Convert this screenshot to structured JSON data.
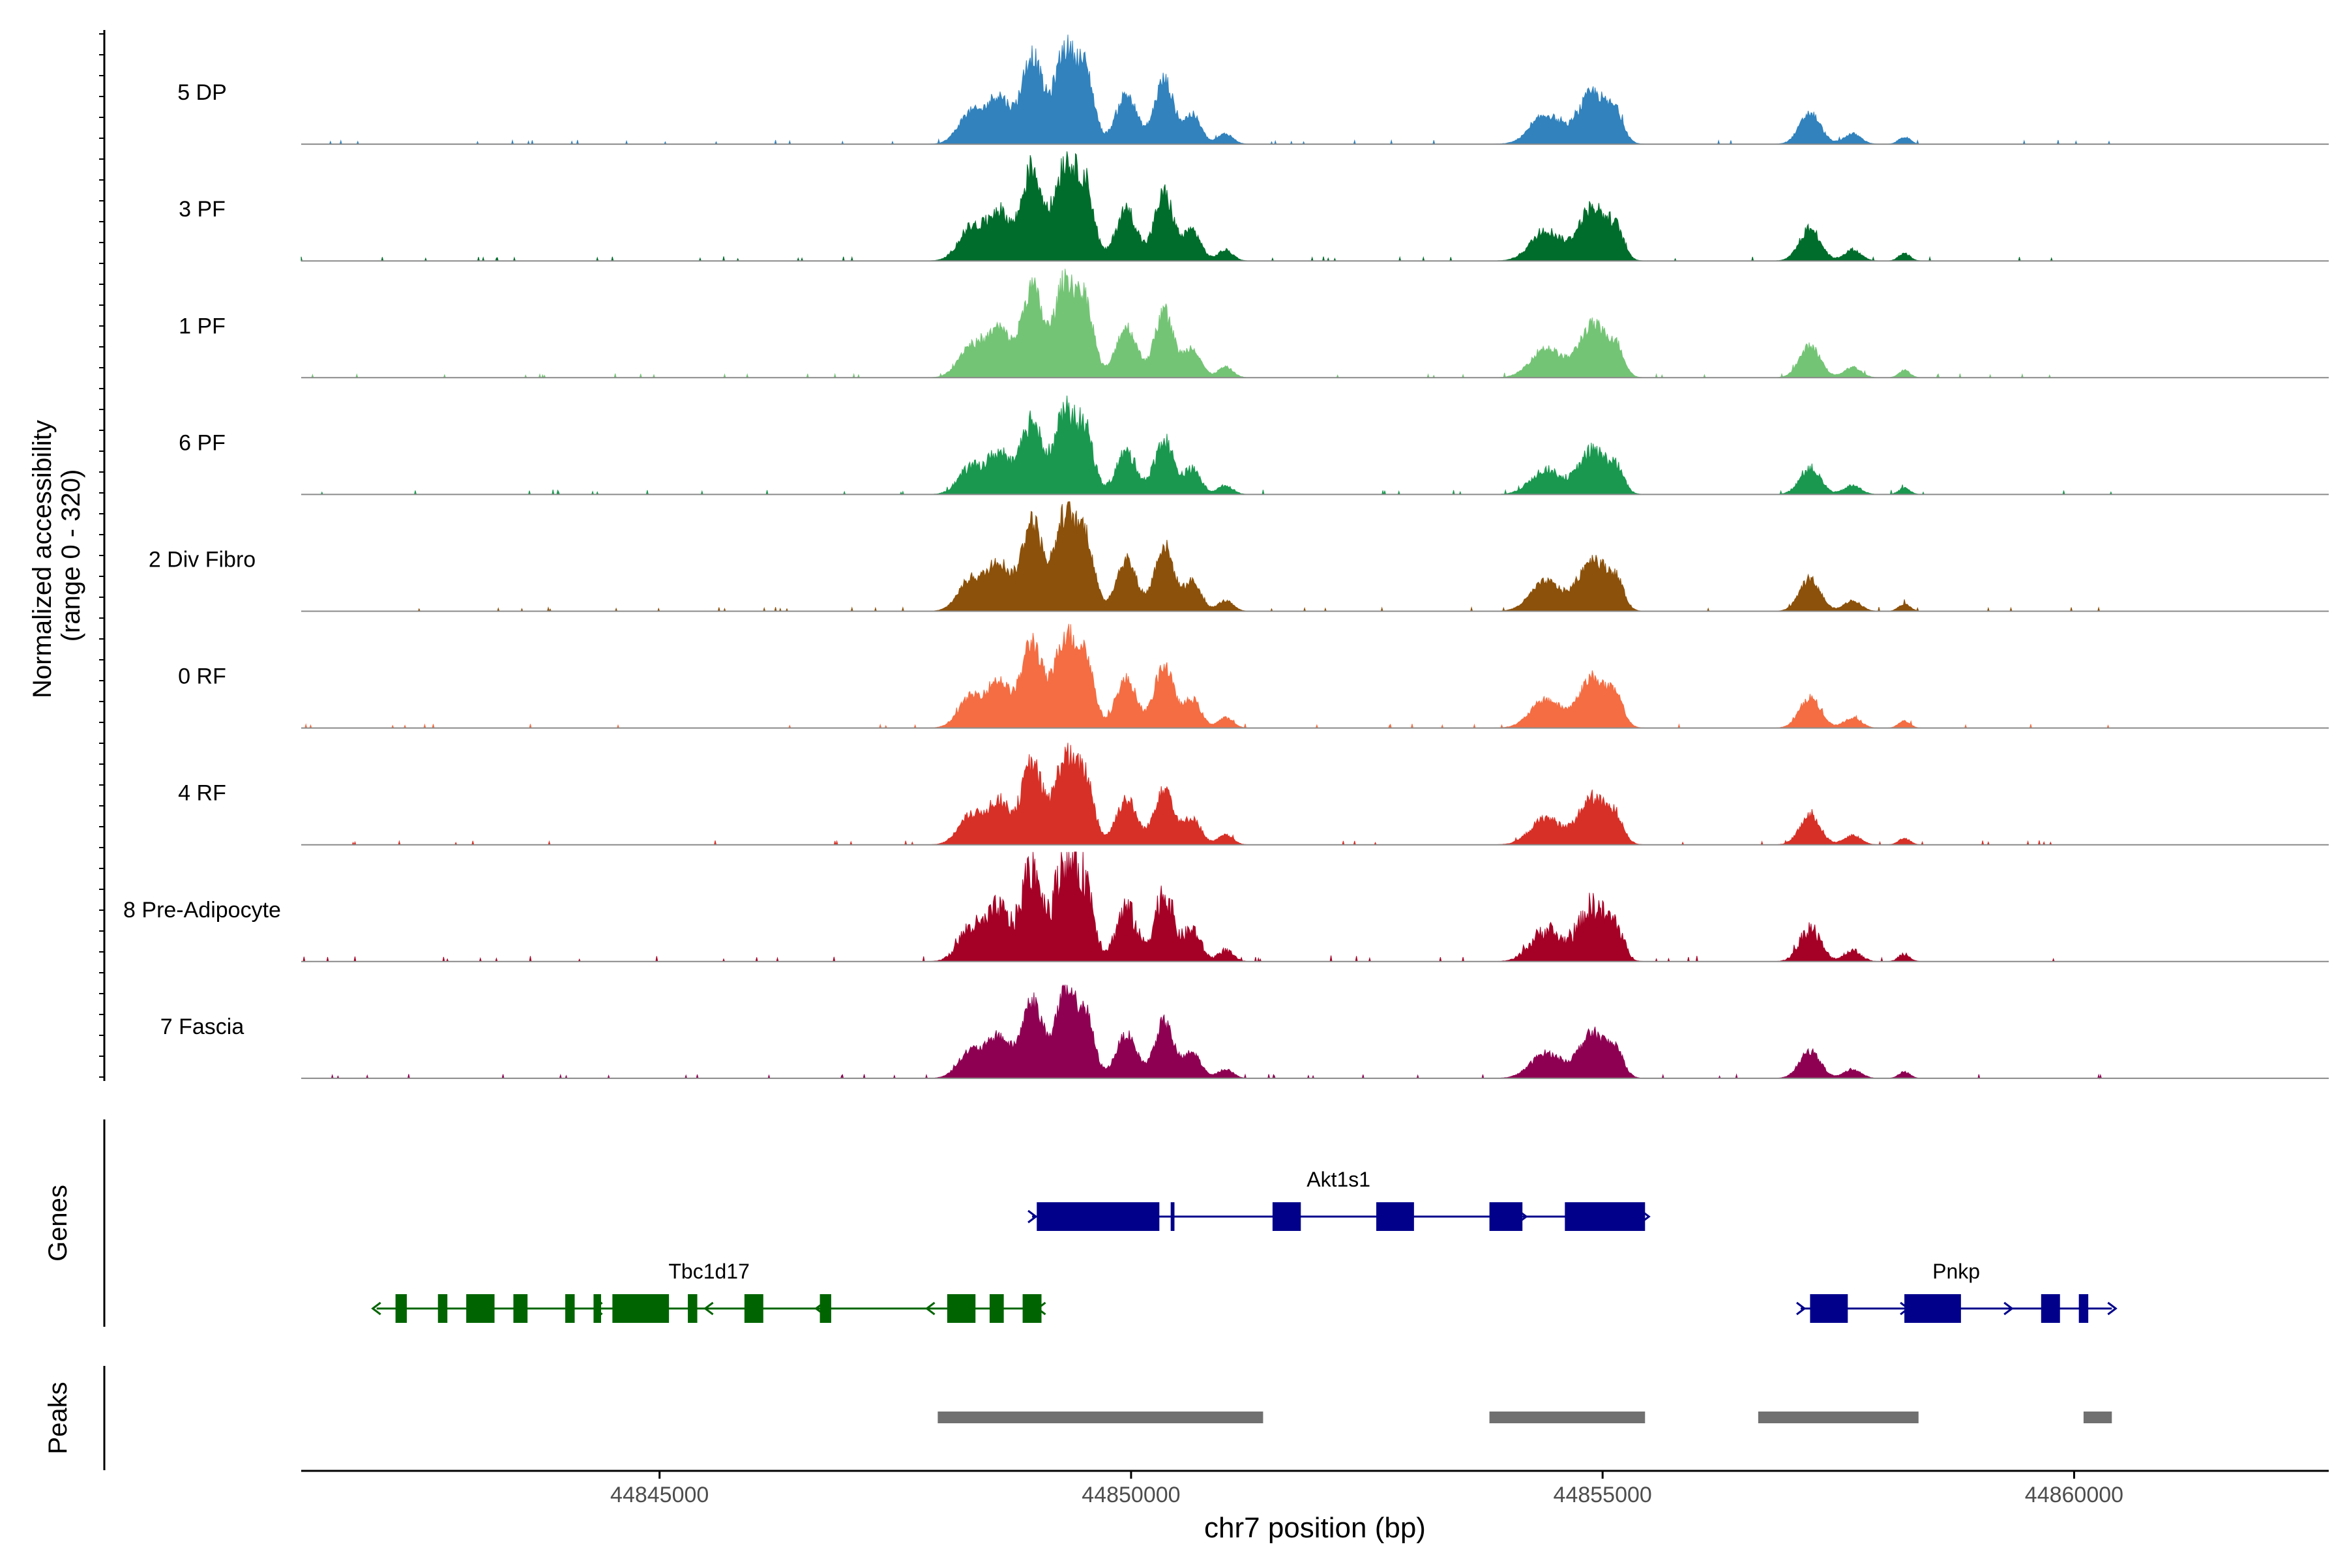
{
  "chart_data": {
    "type": "area",
    "title": "",
    "xlabel": "chr7 position (bp)",
    "ylabel_line1": "Normalized accessibility",
    "ylabel_line2": "(range 0 - 320)",
    "y_range": [
      0,
      320
    ],
    "x_range": [
      44841200,
      44862700
    ],
    "x_ticks": [
      {
        "value": 44845000,
        "label": "44845000"
      },
      {
        "value": 44850000,
        "label": "44850000"
      },
      {
        "value": 44855000,
        "label": "44855000"
      },
      {
        "value": 44860000,
        "label": "44860000"
      }
    ],
    "data_start": 44841200,
    "data_end": 44860400,
    "peak_model": [
      {
        "center": 44848300,
        "width": 130,
        "height": 0.3
      },
      {
        "center": 44848600,
        "width": 120,
        "height": 0.45
      },
      {
        "center": 44848950,
        "width": 110,
        "height": 0.85
      },
      {
        "center": 44849300,
        "width": 110,
        "height": 0.9
      },
      {
        "center": 44849520,
        "width": 90,
        "height": 0.65
      },
      {
        "center": 44849950,
        "width": 110,
        "height": 0.48
      },
      {
        "center": 44850350,
        "width": 100,
        "height": 0.62
      },
      {
        "center": 44850650,
        "width": 90,
        "height": 0.28
      },
      {
        "center": 44851000,
        "width": 80,
        "height": 0.1
      },
      {
        "center": 44854400,
        "width": 160,
        "height": 0.28
      },
      {
        "center": 44854900,
        "width": 150,
        "height": 0.5
      },
      {
        "center": 44855150,
        "width": 80,
        "height": 0.22
      },
      {
        "center": 44857200,
        "width": 110,
        "height": 0.3
      },
      {
        "center": 44857650,
        "width": 90,
        "height": 0.1
      },
      {
        "center": 44858200,
        "width": 60,
        "height": 0.07
      }
    ],
    "series": [
      {
        "name": "5 DP",
        "color": "#3182bd",
        "scale": 0.94,
        "noise": 0.3
      },
      {
        "name": "3 PF",
        "color": "#006d2c",
        "scale": 0.98,
        "noise": 0.35
      },
      {
        "name": "1 PF",
        "color": "#74c476",
        "scale": 0.96,
        "noise": 0.3
      },
      {
        "name": "6 PF",
        "color": "#1a9850",
        "scale": 0.8,
        "noise": 0.4
      },
      {
        "name": "2 Div Fibro",
        "color": "#8c510a",
        "scale": 0.96,
        "noise": 0.3
      },
      {
        "name": "0 RF",
        "color": "#f46d43",
        "scale": 0.92,
        "noise": 0.3
      },
      {
        "name": "4 RF",
        "color": "#d73027",
        "scale": 0.86,
        "noise": 0.35
      },
      {
        "name": "8 Pre-Adipocyte",
        "color": "#a50026",
        "scale": 1.0,
        "noise": 0.6
      },
      {
        "name": "7 Fascia",
        "color": "#8e0152",
        "scale": 0.82,
        "noise": 0.3
      }
    ],
    "genes_label": "Genes",
    "peaks_label": "Peaks",
    "genes": [
      {
        "name": "Akt1s1",
        "strand": "+",
        "color": "#00008b",
        "row": 0,
        "start": 44848950,
        "end": 44855450,
        "exons": [
          [
            44849000,
            44850300
          ],
          [
            44850420,
            44850460
          ],
          [
            44851500,
            44851800
          ],
          [
            44852600,
            44853000
          ],
          [
            44853800,
            44854150
          ],
          [
            44854600,
            44855450
          ]
        ]
      },
      {
        "name": "Tbc1d17",
        "strand": "-",
        "color": "#006400",
        "row": 1,
        "start": 44842000,
        "end": 44849050,
        "exons": [
          [
            44842200,
            44842320
          ],
          [
            44842650,
            44842750
          ],
          [
            44842950,
            44843250
          ],
          [
            44843450,
            44843600
          ],
          [
            44844000,
            44844100
          ],
          [
            44844300,
            44844380
          ],
          [
            44844500,
            44845100
          ],
          [
            44845300,
            44845400
          ],
          [
            44845900,
            44846100
          ],
          [
            44846700,
            44846820
          ],
          [
            44848050,
            44848350
          ],
          [
            44848500,
            44848650
          ],
          [
            44848850,
            44849050
          ]
        ]
      },
      {
        "name": "Pnkp",
        "strand": "+",
        "color": "#00008b",
        "row": 1,
        "start": 44857100,
        "end": 44860400,
        "exons": [
          [
            44857200,
            44857600
          ],
          [
            44858200,
            44858800
          ],
          [
            44859650,
            44859850
          ],
          [
            44860050,
            44860150
          ]
        ]
      }
    ],
    "peaks": [
      [
        44847950,
        44851400
      ],
      [
        44853800,
        44855450
      ],
      [
        44856650,
        44858350
      ],
      [
        44860100,
        44860400
      ]
    ]
  }
}
